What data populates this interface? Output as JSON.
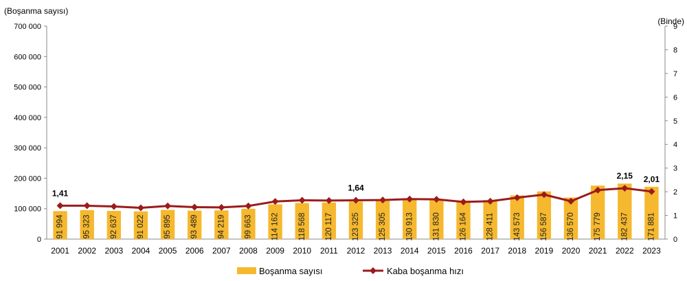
{
  "chart_data": {
    "type": "bar+line",
    "y_left_label": "(Boşanma sayısı)",
    "y_right_label": "(Binde)",
    "y_left_lim": [
      0,
      700000
    ],
    "y_left_ticks": [
      "0",
      "100 000",
      "200 000",
      "300 000",
      "400 000",
      "500 000",
      "600 000",
      "700 000"
    ],
    "y_right_lim": [
      0,
      9
    ],
    "y_right_ticks": [
      "0",
      "1",
      "2",
      "3",
      "4",
      "5",
      "6",
      "7",
      "8",
      "9"
    ],
    "categories": [
      "2001",
      "2002",
      "2003",
      "2004",
      "2005",
      "2006",
      "2007",
      "2008",
      "2009",
      "2010",
      "2011",
      "2012",
      "2013",
      "2014",
      "2015",
      "2016",
      "2017",
      "2018",
      "2019",
      "2020",
      "2021",
      "2022",
      "2023"
    ],
    "series": [
      {
        "name": "Boşanma sayısı",
        "type": "bar",
        "axis": "left",
        "color": "#F5B82E",
        "values": [
          91994,
          95323,
          92637,
          91022,
          95895,
          93489,
          94219,
          99663,
          114162,
          118568,
          120117,
          123325,
          125305,
          130913,
          131830,
          126164,
          128411,
          143573,
          156587,
          136570,
          175779,
          182437,
          171881
        ],
        "labels": [
          "91 994",
          "95 323",
          "92 637",
          "91 022",
          "95 895",
          "93 489",
          "94 219",
          "99 663",
          "114 162",
          "118 568",
          "120 117",
          "123 325",
          "125 305",
          "130 913",
          "131 830",
          "126 164",
          "128 411",
          "143 573",
          "156 587",
          "136 570",
          "175 779",
          "182 437",
          "171 881"
        ]
      },
      {
        "name": "Kaba boşanma hızı",
        "type": "line",
        "axis": "right",
        "color": "#9B1B1B",
        "values": [
          1.41,
          1.41,
          1.38,
          1.32,
          1.4,
          1.35,
          1.34,
          1.4,
          1.59,
          1.64,
          1.63,
          1.64,
          1.65,
          1.69,
          1.68,
          1.57,
          1.6,
          1.75,
          1.88,
          1.6,
          2.07,
          2.15,
          2.01
        ]
      }
    ],
    "point_labels": [
      {
        "category": "2001",
        "text": "1,41"
      },
      {
        "category": "2012",
        "text": "1,64"
      },
      {
        "category": "2022",
        "text": "2,15"
      },
      {
        "category": "2023",
        "text": "2,01"
      }
    ],
    "legend_position": "bottom",
    "grid": false
  }
}
